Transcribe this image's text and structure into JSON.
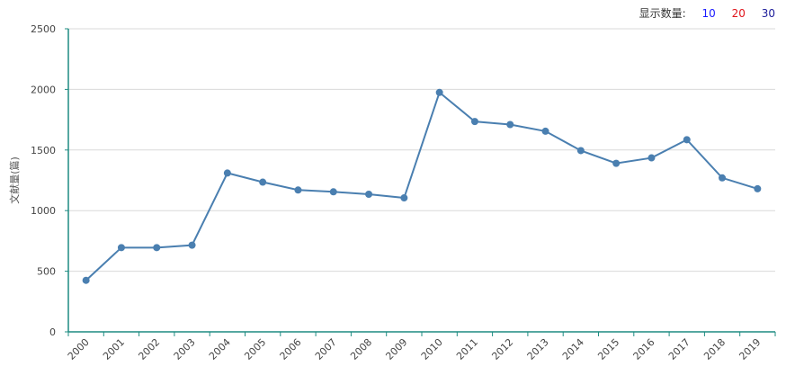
{
  "count_selector": {
    "label": "显示数量:",
    "options": [
      "10",
      "20",
      "30"
    ]
  },
  "chart_data": {
    "type": "line",
    "x": [
      "2000",
      "2001",
      "2002",
      "2003",
      "2004",
      "2005",
      "2006",
      "2007",
      "2008",
      "2009",
      "2010",
      "2011",
      "2012",
      "2013",
      "2014",
      "2015",
      "2016",
      "2017",
      "2018",
      "2019"
    ],
    "series": [
      {
        "values": [
          425,
          695,
          695,
          715,
          1310,
          1235,
          1170,
          1155,
          1135,
          1105,
          1975,
          1735,
          1710,
          1655,
          1495,
          1390,
          1435,
          1585,
          1270,
          1180
        ]
      }
    ],
    "ylabel": "文献量(篇)",
    "xlabel": "",
    "ylim": [
      0,
      2500
    ],
    "yticks": [
      "0",
      "500",
      "1000",
      "1500",
      "2000",
      "2500"
    ],
    "grid": true,
    "colors": {
      "line": "#4a7fb0",
      "marker": "#4a7fb0",
      "axis": "#1e8c82",
      "grid": "#d9d9d9"
    }
  }
}
